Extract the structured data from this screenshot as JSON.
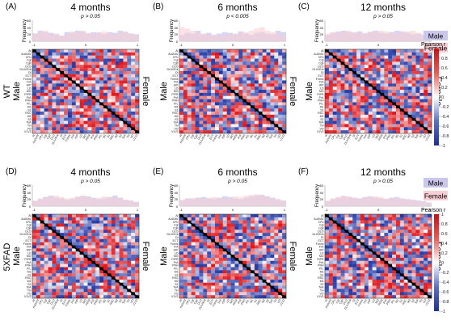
{
  "figure": {
    "regions": [
      "AI",
      "AuD/AV",
      "CPu",
      "CgI",
      "CgII",
      "DLO",
      "DLIV/Ent",
      "DI",
      "ECT",
      "Fornix",
      "FrA",
      "HIP",
      "LO",
      "MO",
      "PIPR",
      "PrA",
      "PRH",
      "PrL",
      "M1",
      "S1",
      "RSC",
      "M2",
      "S2",
      "TeA",
      "TH",
      "VO",
      "V1V2"
    ],
    "colorbar": {
      "label": "Pearson r",
      "ticks": [
        "1",
        "0.8",
        "0.6",
        "0.4",
        "0.2",
        "0",
        "-0.2",
        "-0.4",
        "-0.6",
        "-0.8",
        "-1"
      ],
      "colors": {
        "positive": "#e0161b",
        "neutral": "#ffffff",
        "negative": "#2137a6"
      }
    },
    "legend": {
      "male": "Male",
      "female": "Female",
      "male_color": "#c9c7ec",
      "female_color": "#f7cfd4"
    },
    "row_labels": {
      "wt": "WT",
      "fad": "5XFAD"
    },
    "panels": [
      {
        "letter": "(A)",
        "title": "4 months",
        "pval": "p > 0.05",
        "male_label": "Male",
        "female_label": "Female",
        "yaxis": "Frequency",
        "yticks": [
          "60",
          "40",
          "20",
          "0"
        ],
        "xticks": [
          "-1",
          "0",
          "1"
        ],
        "male_hist": [
          22,
          30,
          26,
          24,
          20,
          16,
          26,
          24,
          30,
          28,
          22,
          26,
          24,
          20,
          26,
          24,
          30,
          26,
          22,
          20
        ],
        "female_hist": [
          20,
          26,
          30,
          20,
          22,
          14,
          20,
          28,
          26,
          30,
          24,
          20,
          26,
          28,
          22,
          20,
          24,
          28,
          20,
          16
        ],
        "seed": 11
      },
      {
        "letter": "(B)",
        "title": "6 months",
        "pval": "p < 0.005",
        "male_label": "Male",
        "female_label": "Female",
        "yaxis": "Frequency",
        "yticks": [
          "60",
          "40",
          "20",
          "0"
        ],
        "xticks": [
          "-1",
          "0",
          "1"
        ],
        "male_hist": [
          18,
          24,
          22,
          30,
          20,
          24,
          18,
          22,
          26,
          24,
          20,
          28,
          22,
          18,
          24,
          26,
          22,
          20,
          30,
          26
        ],
        "female_hist": [
          40,
          36,
          30,
          24,
          22,
          20,
          18,
          14,
          16,
          20,
          22,
          24,
          26,
          30,
          36,
          40,
          30,
          26,
          20,
          14
        ],
        "seed": 23
      },
      {
        "letter": "(C)",
        "title": "12 months",
        "pval": "p > 0.05",
        "male_label": "Male",
        "female_label": "Female",
        "yaxis": "Frequency",
        "yticks": [
          "60",
          "40",
          "20",
          "0"
        ],
        "xticks": [
          "-1",
          "0",
          "1"
        ],
        "male_hist": [
          18,
          24,
          28,
          30,
          26,
          24,
          28,
          22,
          26,
          30,
          24,
          22,
          26,
          30,
          28,
          24,
          20,
          22,
          18,
          16
        ],
        "female_hist": [
          22,
          26,
          24,
          28,
          30,
          26,
          22,
          24,
          28,
          26,
          30,
          28,
          24,
          22,
          26,
          28,
          30,
          24,
          20,
          18
        ],
        "seed": 37
      },
      {
        "letter": "(D)",
        "title": "4 months",
        "pval": "p > 0.05",
        "male_label": "Male",
        "female_label": "Female",
        "yaxis": "Frequency",
        "yticks": [
          "60",
          "40",
          "20",
          "0"
        ],
        "xticks": [
          "-1",
          "0",
          "1"
        ],
        "male_hist": [
          14,
          20,
          26,
          30,
          24,
          22,
          18,
          20,
          26,
          30,
          28,
          24,
          20,
          22,
          26,
          30,
          24,
          18,
          16,
          12
        ],
        "female_hist": [
          16,
          22,
          24,
          28,
          30,
          26,
          22,
          24,
          28,
          30,
          26,
          22,
          24,
          28,
          26,
          24,
          20,
          18,
          14,
          10
        ],
        "seed": 41
      },
      {
        "letter": "(E)",
        "title": "6 months",
        "pval": "p > 0.05",
        "male_label": "Male",
        "female_label": "Female",
        "yaxis": "Frequency",
        "yticks": [
          "60",
          "40",
          "20",
          "0"
        ],
        "xticks": [
          "-1",
          "0",
          "1"
        ],
        "male_hist": [
          16,
          22,
          20,
          24,
          26,
          22,
          20,
          24,
          28,
          26,
          22,
          20,
          24,
          28,
          30,
          32,
          28,
          24,
          20,
          16
        ],
        "female_hist": [
          18,
          20,
          24,
          22,
          20,
          24,
          26,
          22,
          20,
          24,
          28,
          26,
          30,
          32,
          34,
          30,
          26,
          22,
          18,
          14
        ],
        "seed": 53
      },
      {
        "letter": "(F)",
        "title": "12 months",
        "pval": "p > 0.05",
        "male_label": "Male",
        "female_label": "Female",
        "yaxis": "Frequency",
        "yticks": [
          "60",
          "40",
          "20",
          "0"
        ],
        "xticks": [
          "-1",
          "0",
          "1"
        ],
        "male_hist": [
          14,
          20,
          24,
          28,
          26,
          24,
          22,
          26,
          28,
          24,
          22,
          20,
          24,
          26,
          22,
          20,
          18,
          16,
          14,
          10
        ],
        "female_hist": [
          16,
          22,
          26,
          30,
          28,
          24,
          20,
          24,
          26,
          28,
          26,
          22,
          20,
          24,
          22,
          20,
          18,
          14,
          12,
          8
        ],
        "seed": 67
      }
    ]
  }
}
